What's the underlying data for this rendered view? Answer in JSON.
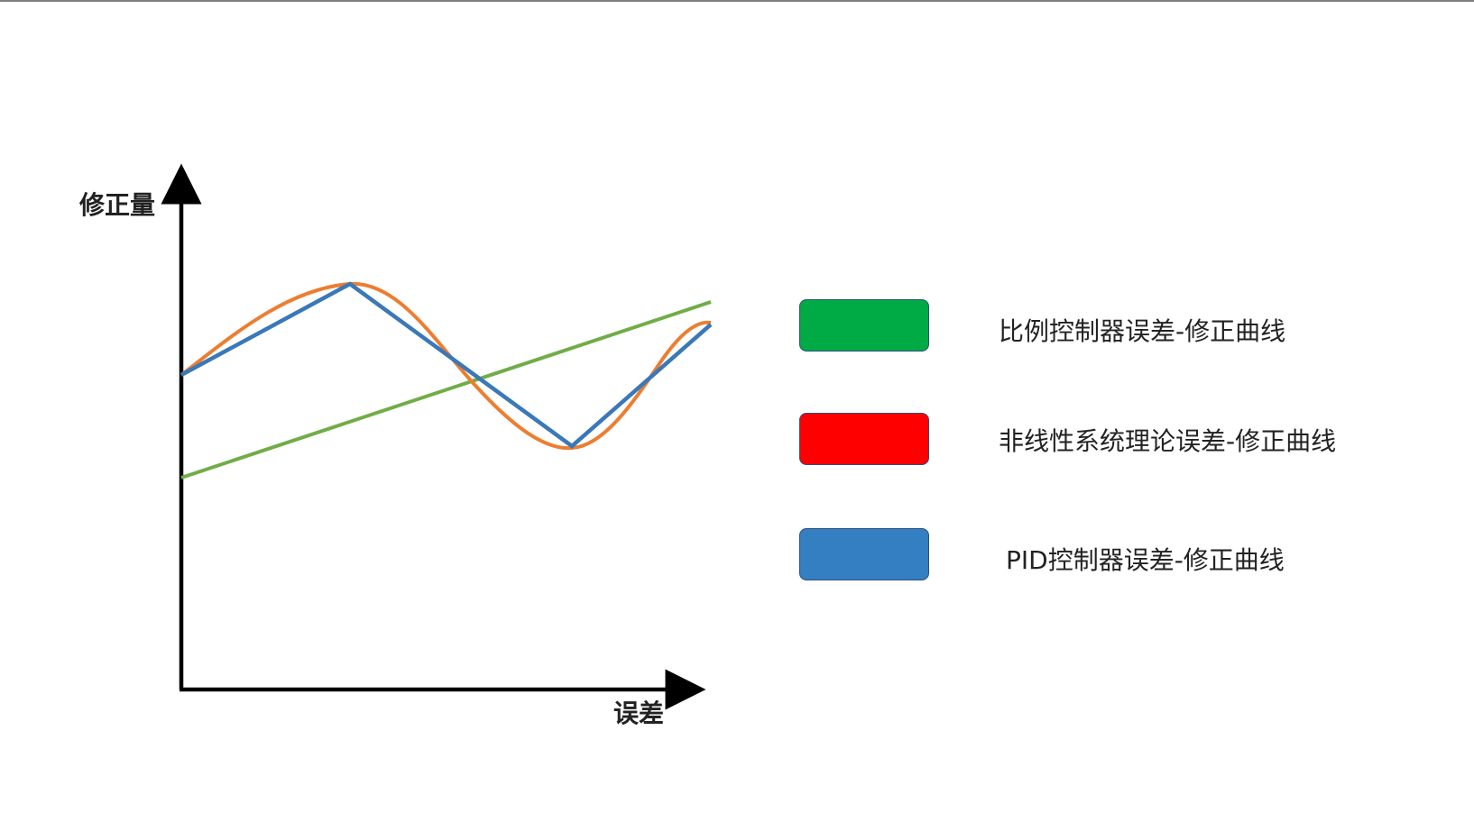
{
  "axes": {
    "y_label": "修正量",
    "x_label": "误差"
  },
  "legend": [
    {
      "label": "比例控制器误差-修正曲线",
      "color": "#00aa44"
    },
    {
      "label": "非线性系统理论误差-修正曲线",
      "color": "#ff0000"
    },
    {
      "label": "PID控制器误差-修正曲线",
      "color": "#337fc1"
    }
  ],
  "curve_colors": {
    "proportional": "#70ad47",
    "nonlinear": "#ed7d31",
    "pid": "#3a78b8"
  }
}
